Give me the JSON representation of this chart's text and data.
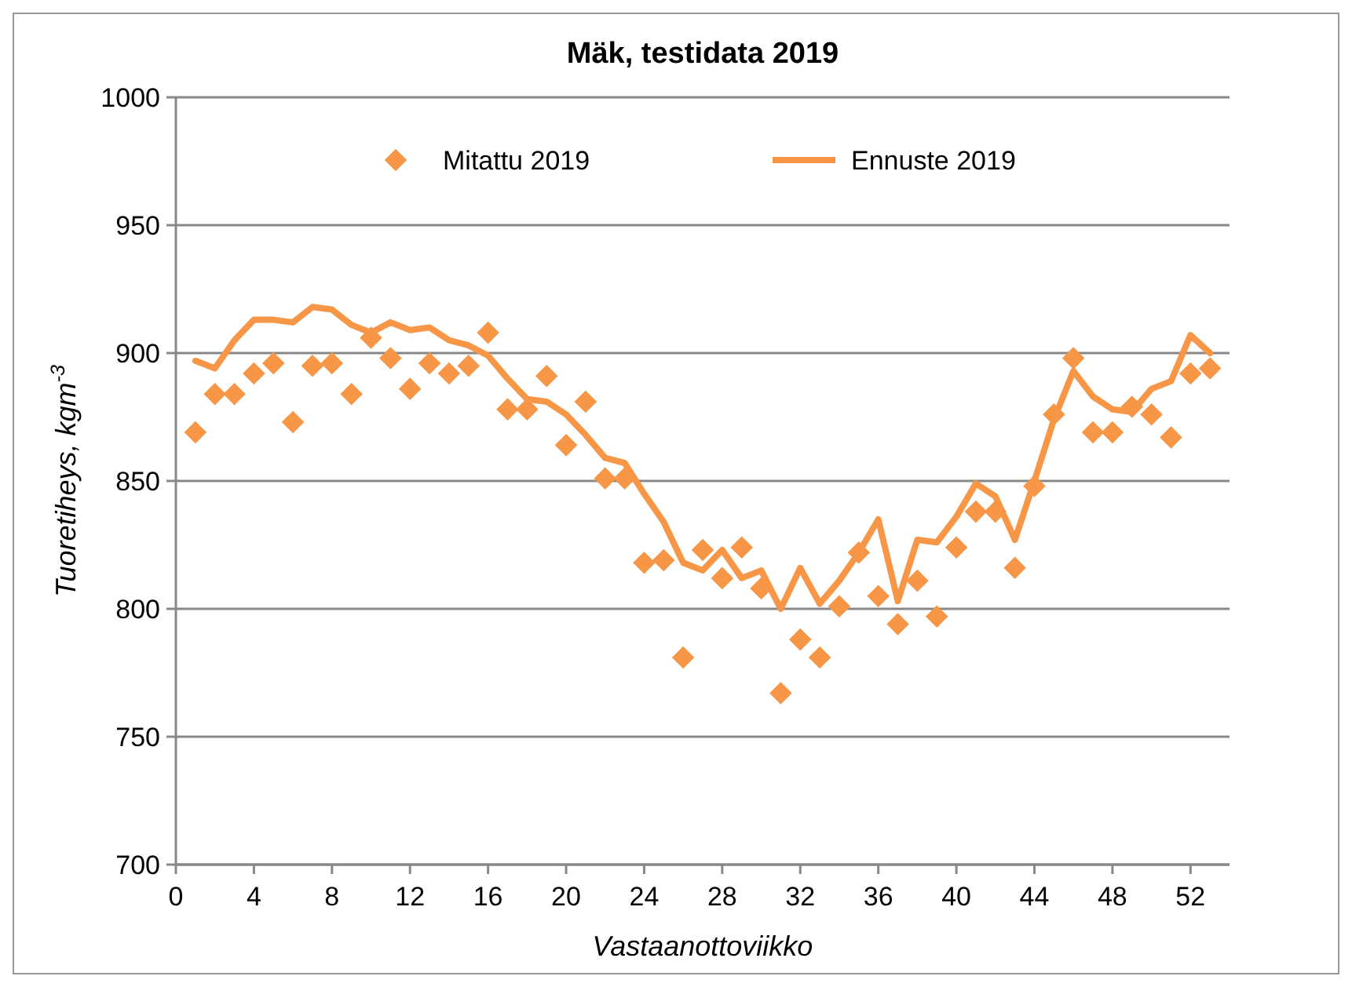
{
  "chart_data": {
    "type": "scatter",
    "title": "Mäk, testidata 2019",
    "xlabel": "Vastaanottoviikko",
    "ylabel": "Tuoretiheys, kgm$^{-3}$",
    "x": [
      1,
      2,
      3,
      4,
      5,
      6,
      7,
      8,
      9,
      10,
      11,
      12,
      13,
      14,
      15,
      16,
      17,
      18,
      19,
      20,
      21,
      22,
      23,
      24,
      25,
      26,
      27,
      28,
      29,
      30,
      31,
      32,
      33,
      34,
      35,
      36,
      37,
      38,
      39,
      40,
      41,
      42,
      43,
      44,
      45,
      46,
      47,
      48,
      49,
      50,
      51,
      52,
      53
    ],
    "series": [
      {
        "name": "Mitattu 2019",
        "marker": "diamond",
        "color": "#f79646",
        "values": [
          869,
          884,
          884,
          892,
          896,
          873,
          895,
          896,
          884,
          906,
          898,
          886,
          896,
          892,
          895,
          908,
          878,
          878,
          891,
          864,
          881,
          851,
          851,
          818,
          819,
          781,
          823,
          812,
          824,
          808,
          767,
          788,
          781,
          801,
          822,
          805,
          794,
          811,
          797,
          824,
          838,
          838,
          816,
          848,
          876,
          898,
          869,
          869,
          879,
          876,
          867,
          892,
          894
        ]
      },
      {
        "name": "Ennuste 2019",
        "type": "line",
        "marker": "none",
        "line_style": "solid",
        "color": "#f79646",
        "values": [
          897,
          894,
          905,
          913,
          913,
          912,
          918,
          917,
          911,
          908,
          912,
          909,
          910,
          905,
          903,
          899,
          890,
          882,
          881,
          876,
          868,
          859,
          857,
          845,
          834,
          818,
          815,
          823,
          812,
          815,
          800,
          816,
          802,
          811,
          822,
          835,
          803,
          827,
          826,
          836,
          849,
          844,
          827,
          850,
          874,
          893,
          883,
          878,
          877,
          886,
          889,
          907,
          900
        ]
      }
    ],
    "xlim": [
      0,
      54
    ],
    "xticks": [
      0,
      4,
      8,
      12,
      16,
      20,
      24,
      28,
      32,
      36,
      40,
      44,
      48,
      52
    ],
    "ylim": [
      700,
      1000
    ],
    "yticks": [
      700,
      750,
      800,
      850,
      900,
      950,
      1000
    ],
    "grid": "y",
    "legend": "top"
  }
}
